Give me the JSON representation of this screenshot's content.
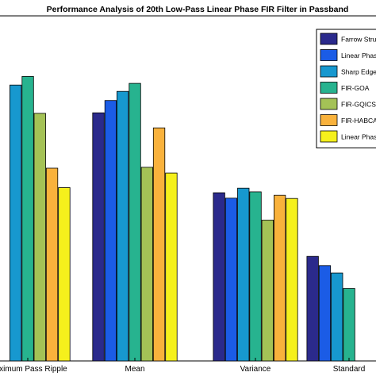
{
  "chart_data": {
    "type": "bar",
    "title": "Performance Analysis of 20th Low-Pass Linear Phase FIR Filter in Passband",
    "xlabel": "",
    "ylabel": "",
    "ylim": [
      0,
      100
    ],
    "grid": false,
    "legend_position": "top-right",
    "categories": [
      "Maximum Pass Ripple",
      "Mean",
      "Variance",
      "Standard"
    ],
    "series": [
      {
        "name": "Farrow Structure",
        "color": "#2b2a8c",
        "values": [
          null,
          86.9,
          58.9,
          36.6
        ]
      },
      {
        "name": "Linear Phase",
        "color": "#1b5ce6",
        "values": [
          null,
          91.2,
          57.0,
          33.4
        ]
      },
      {
        "name": "Sharp Edge-I",
        "color": "#1798cf",
        "values": [
          96.6,
          94.4,
          60.5,
          30.8
        ]
      },
      {
        "name": "FIR-GOA",
        "color": "#27b38f",
        "values": [
          99.6,
          97.2,
          59.2,
          25.4
        ]
      },
      {
        "name": "FIR-GQICSA",
        "color": "#a4c256",
        "values": [
          86.7,
          67.8,
          49.3,
          null
        ]
      },
      {
        "name": "FIR-HABCA",
        "color": "#f9b23c",
        "values": [
          67.5,
          81.6,
          58.0,
          null
        ]
      },
      {
        "name": "Linear Phase",
        "color": "#f5f01c",
        "values": [
          60.7,
          65.8,
          56.9,
          null
        ]
      }
    ],
    "legend_labels": [
      "Farrow Struc",
      "Linear Phase",
      "Sharp Edge-I",
      "FIR-GOA",
      "FIR-GQICSA",
      "FIR-HABCA",
      "Linear Phase"
    ]
  }
}
